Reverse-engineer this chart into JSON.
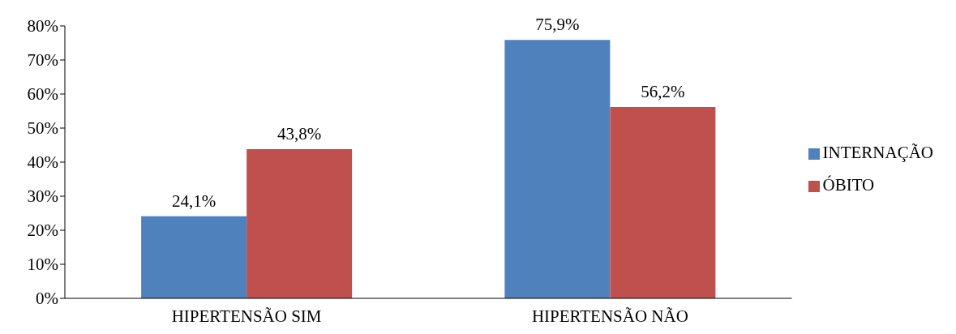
{
  "chart_data": {
    "type": "bar",
    "categories": [
      "HIPERTENSÃO SIM",
      "HIPERTENSÃO NÃO"
    ],
    "series": [
      {
        "name": "INTERNAÇÃO",
        "color": "#4f81bd",
        "values": [
          24.1,
          75.9
        ],
        "value_labels": [
          "24,1%",
          "75,9%"
        ]
      },
      {
        "name": "ÓBITO",
        "color": "#c0504d",
        "values": [
          43.8,
          56.2
        ],
        "value_labels": [
          "43,8%",
          "56,2%"
        ]
      }
    ],
    "ylim": [
      0,
      80
    ],
    "yticks": [
      {
        "value": 0,
        "label": "0%"
      },
      {
        "value": 10,
        "label": "10%"
      },
      {
        "value": 20,
        "label": "20%"
      },
      {
        "value": 30,
        "label": "30%"
      },
      {
        "value": 40,
        "label": "40%"
      },
      {
        "value": 50,
        "label": "50%"
      },
      {
        "value": 60,
        "label": "60%"
      },
      {
        "value": 70,
        "label": "70%"
      },
      {
        "value": 80,
        "label": "80%"
      }
    ],
    "grid": false,
    "legend": "right"
  }
}
